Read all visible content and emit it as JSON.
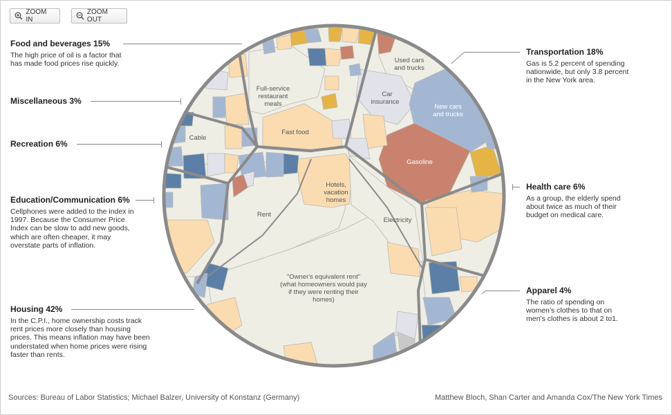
{
  "toolbar": {
    "zoom_in": "ZOOM IN",
    "zoom_out": "ZOOM OUT"
  },
  "annotations": {
    "food": {
      "title": "Food and beverages 15%",
      "text": "The high price of oil is a factor that has made food prices rise quickly."
    },
    "misc": {
      "title": "Miscellaneous 3%"
    },
    "recreation": {
      "title": "Recreation 6%"
    },
    "education": {
      "title": "Education/Communication 6%",
      "text": "Cellphones were added to the index in 1997. Because the Consumer Price Index can be slow to add new goods, which are often cheaper, it may overstate parts of inflation."
    },
    "housing": {
      "title": "Housing 42%",
      "text": "In the C.P.I., home ownership costs track rent prices more closely than housing prices. This means inflation may have been understated when home prices were rising faster than rents."
    },
    "transport": {
      "title": "Transportation 18%",
      "text": "Gas is 5.2 percent of spending nationwide, but only 3.8 percent in the New York area."
    },
    "health": {
      "title": "Health care 6%",
      "text": "As a group, the elderly spend about twice as much of their budget on medical care."
    },
    "apparel": {
      "title": "Apparel 4%",
      "text": "The ratio of spending on women’s clothes to that on men’s clothes is about 2 to1."
    }
  },
  "cells": {
    "used_cars": [
      "Used cars",
      "and trucks"
    ],
    "car_insurance": [
      "Car",
      "insurance"
    ],
    "new_cars": [
      "New cars",
      "and trucks"
    ],
    "gasoline": "Gasoline",
    "full_service": [
      "Full-service",
      "restaurant",
      "meals"
    ],
    "fast_food": "Fast food",
    "cable": "Cable",
    "hotels": [
      "Hotels,",
      "vacation",
      "homes"
    ],
    "electricity": "Electricity",
    "rent": "Rent",
    "owners": [
      "\"Owner's equivalent rent\"",
      "(what homeowners would pay",
      "if they were renting their",
      "homes)"
    ]
  },
  "footer": {
    "sources": "Sources: Bureau of Labor Statistics; Michael Balzer, University of Konstanz (Germany)",
    "credit": "Matthew Bloch, Shan Carter and Amanda Cox/The New York Times"
  },
  "colors": {
    "rim": "#8a8a8a",
    "cream": "#eeeee4",
    "peach": "#fbdcb0",
    "blue": "#a3b7d3",
    "darkblue": "#5b7fa6",
    "gold": "#e6b444",
    "terracotta": "#c9826e",
    "lightgray": "#e2e3ea"
  }
}
